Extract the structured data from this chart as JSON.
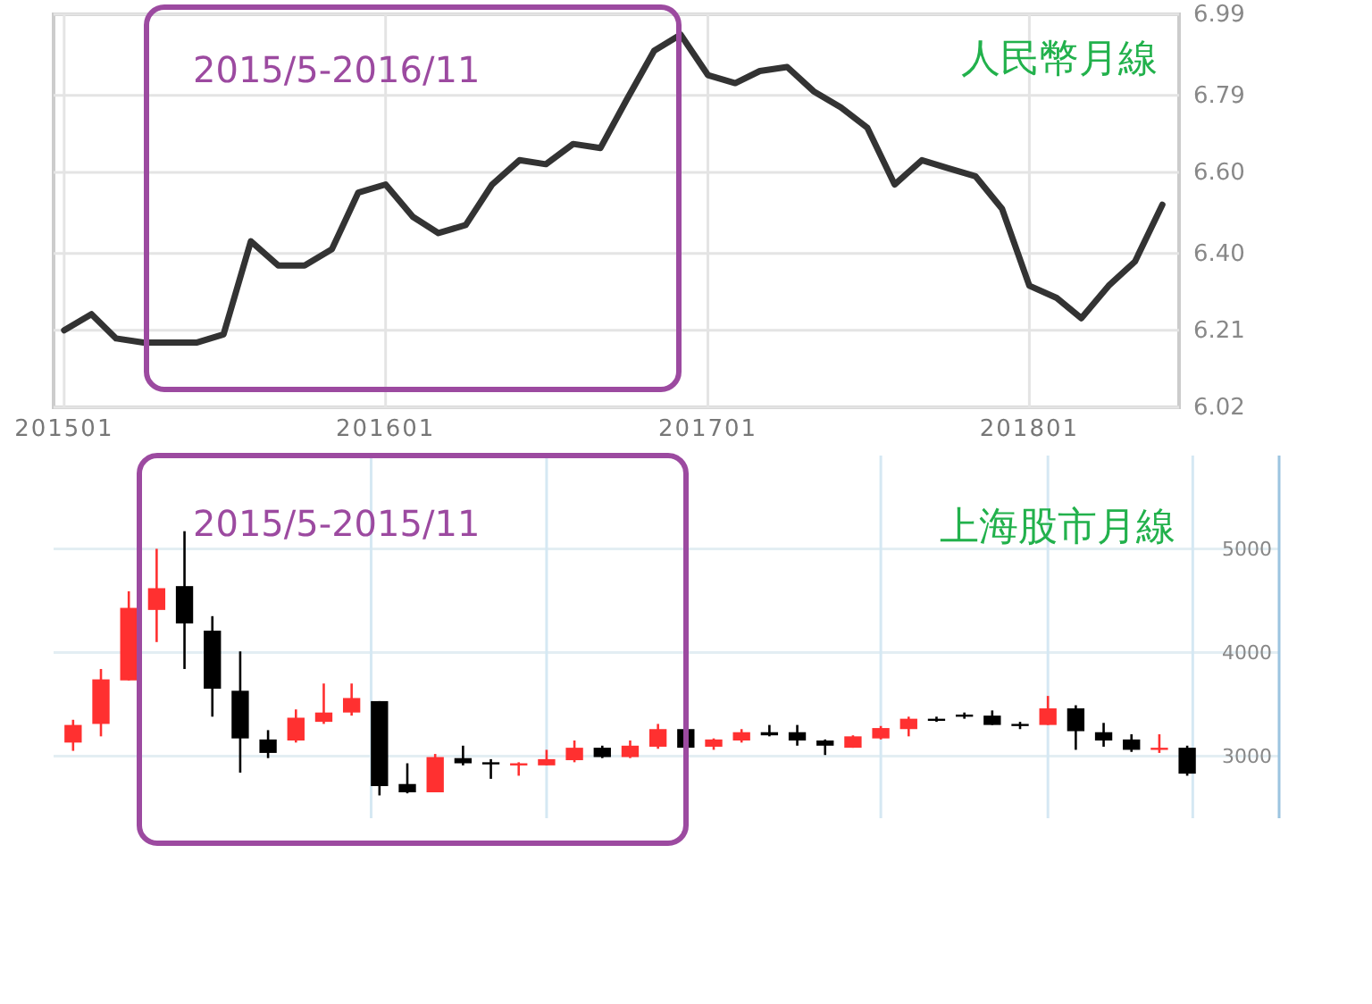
{
  "chart_data": [
    {
      "type": "line",
      "title": "人民幣月線",
      "annotations": [
        "2015/5-2016/11"
      ],
      "x": [
        "2015-01",
        "2015-02",
        "2015-03",
        "2015-04",
        "2015-05",
        "2015-06",
        "2015-07",
        "2015-08",
        "2015-09",
        "2015-10",
        "2015-11",
        "2015-12",
        "2016-01",
        "2016-02",
        "2016-03",
        "2016-04",
        "2016-05",
        "2016-06",
        "2016-07",
        "2016-08",
        "2016-09",
        "2016-10",
        "2016-11",
        "2016-12",
        "2017-01",
        "2017-02",
        "2017-03",
        "2017-04",
        "2017-05",
        "2017-06",
        "2017-07",
        "2017-08",
        "2017-09",
        "2017-10",
        "2017-11",
        "2017-12",
        "2018-01",
        "2018-02",
        "2018-03",
        "2018-04",
        "2018-05",
        "2018-06"
      ],
      "values": [
        6.21,
        6.25,
        6.19,
        6.18,
        6.18,
        6.18,
        6.2,
        6.43,
        6.37,
        6.37,
        6.41,
        6.55,
        6.57,
        6.49,
        6.45,
        6.47,
        6.57,
        6.63,
        6.62,
        6.67,
        6.66,
        6.78,
        6.9,
        6.94,
        6.84,
        6.82,
        6.85,
        6.86,
        6.8,
        6.76,
        6.71,
        6.57,
        6.63,
        6.61,
        6.59,
        6.51,
        6.32,
        6.29,
        6.24,
        6.32,
        6.38,
        6.52
      ],
      "color": "#333333",
      "xlim": [
        "2014-12-20",
        "2018-06-20"
      ],
      "ylim": [
        6.02,
        6.99
      ],
      "xticks": [
        {
          "value": "2015-01",
          "label": "201501"
        },
        {
          "value": "2016-01",
          "label": "201601"
        },
        {
          "value": "2017-01",
          "label": "201701"
        },
        {
          "value": "2018-01",
          "label": "201801"
        }
      ],
      "yticks": [
        6.02,
        6.21,
        {
          "value": 6.4,
          "label": "6.40"
        },
        {
          "value": 6.6,
          "label": "6.60"
        },
        6.79,
        6.99
      ],
      "grid": true
    },
    {
      "type": "candlestick",
      "title": "上海股市月線",
      "annotations": [
        "2015/5-2015/11"
      ],
      "categories": [
        null,
        null,
        null,
        null,
        null,
        null,
        null,
        null,
        null,
        null,
        null,
        null,
        null,
        null,
        null,
        null,
        null,
        null,
        null,
        null,
        null,
        null,
        null,
        null,
        null,
        null,
        null,
        null,
        null,
        null,
        null,
        null,
        null,
        null,
        null,
        null,
        null,
        null,
        null,
        null,
        null
      ],
      "ohlc": [
        [
          3130,
          3350,
          3050,
          3300
        ],
        [
          3310,
          3840,
          3190,
          3740
        ],
        [
          3730,
          4590,
          3730,
          4430
        ],
        [
          4410,
          5000,
          4100,
          4620
        ],
        [
          4640,
          5170,
          3840,
          4280
        ],
        [
          4210,
          4350,
          3380,
          3650
        ],
        [
          3630,
          4010,
          2840,
          3170
        ],
        [
          3160,
          3250,
          2980,
          3030
        ],
        [
          3150,
          3450,
          3130,
          3370
        ],
        [
          3330,
          3700,
          3310,
          3420
        ],
        [
          3420,
          3700,
          3390,
          3560
        ],
        [
          3530,
          3530,
          2620,
          2710
        ],
        [
          2730,
          2930,
          2640,
          2650
        ],
        [
          2650,
          3020,
          2650,
          2990
        ],
        [
          2980,
          3100,
          2910,
          2930
        ],
        [
          2940,
          2970,
          2780,
          2930
        ],
        [
          2910,
          2940,
          2810,
          2930
        ],
        [
          2910,
          3060,
          2910,
          2970
        ],
        [
          2960,
          3150,
          2940,
          3080
        ],
        [
          3080,
          3100,
          2980,
          2990
        ],
        [
          2990,
          3150,
          2980,
          3100
        ],
        [
          3090,
          3310,
          3070,
          3260
        ],
        [
          3260,
          3280,
          3060,
          3080
        ],
        [
          3090,
          3170,
          3060,
          3160
        ],
        [
          3150,
          3260,
          3130,
          3230
        ],
        [
          3230,
          3300,
          3190,
          3200
        ],
        [
          3230,
          3300,
          3100,
          3150
        ],
        [
          3150,
          3160,
          3010,
          3100
        ],
        [
          3080,
          3200,
          3080,
          3190
        ],
        [
          3170,
          3290,
          3160,
          3270
        ],
        [
          3260,
          3380,
          3190,
          3360
        ],
        [
          3360,
          3380,
          3330,
          3340
        ],
        [
          3400,
          3420,
          3360,
          3380
        ],
        [
          3390,
          3440,
          3300,
          3300
        ],
        [
          3310,
          3330,
          3260,
          3300
        ],
        [
          3300,
          3580,
          3300,
          3460
        ],
        [
          3460,
          3490,
          3060,
          3240
        ],
        [
          3230,
          3320,
          3090,
          3150
        ],
        [
          3160,
          3210,
          3040,
          3060
        ],
        [
          3060,
          3210,
          3030,
          3080
        ],
        [
          3080,
          3100,
          2810,
          2830
        ]
      ],
      "colors": [
        "#ff3030",
        "#ff3030",
        "#ff3030",
        "#ff3030",
        "#000000",
        "#000000",
        "#000000",
        "#000000",
        "#ff3030",
        "#ff3030",
        "#ff3030",
        "#000000",
        "#000000",
        "#ff3030",
        "#000000",
        "#000000",
        "#ff3030",
        "#ff3030",
        "#ff3030",
        "#000000",
        "#ff3030",
        "#ff3030",
        "#000000",
        "#ff3030",
        "#ff3030",
        "#000000",
        "#000000",
        "#000000",
        "#ff3030",
        "#ff3030",
        "#ff3030",
        "#000000",
        "#000000",
        "#000000",
        "#000000",
        "#ff3030",
        "#000000",
        "#000000",
        "#000000",
        "#ff3030",
        "#000000"
      ],
      "ylim": [
        2400,
        5900
      ],
      "yticks": [
        3000,
        4000,
        5000
      ],
      "grid": true,
      "tick_labels": "y"
    }
  ]
}
